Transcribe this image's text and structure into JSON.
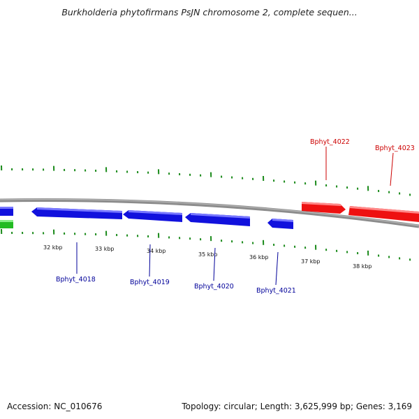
{
  "title": "Burkholderia phytofirmans PsJN chromosome 2, complete sequen...",
  "accession": "Accession: NC_010676",
  "summary": "Topology: circular; Length: 3,625,999 bp; Genes: 3,169",
  "colors": {
    "backbone": "#8c8c8c",
    "tick": "#1a8a1a",
    "forward_gene": "#ee1111",
    "reverse_gene": "#1111dd",
    "forward_label": "#cc0000",
    "reverse_label": "#000099",
    "other_gene": "#22bb22"
  },
  "scale_labels": [
    "32 kbp",
    "33 kbp",
    "34 kbp",
    "35 kbp",
    "36 kbp",
    "37 kbp",
    "38 kbp"
  ],
  "gene_labels": {
    "forward": [
      "Bphyt_4022",
      "Bphyt_4023"
    ],
    "reverse": [
      "Bphyt_4018",
      "Bphyt_4019",
      "Bphyt_4020",
      "Bphyt_4021"
    ]
  }
}
